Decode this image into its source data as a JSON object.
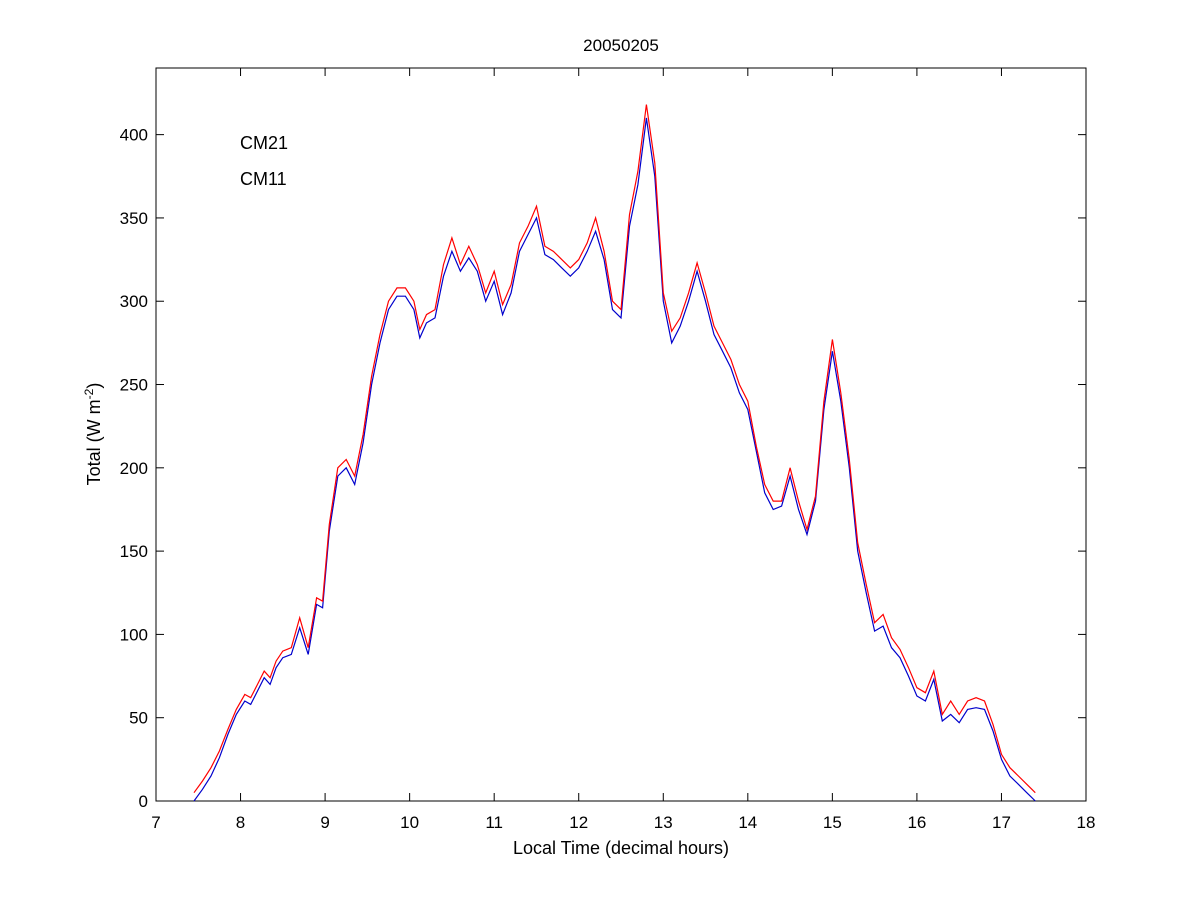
{
  "chart_data": {
    "type": "line",
    "title": "20050205",
    "xlabel": "Local Time (decimal hours)",
    "ylabel": {
      "text": "Total (W m",
      "superscript": "-2",
      "suffix": ")"
    },
    "xlim": [
      7,
      18
    ],
    "ylim": [
      0,
      440
    ],
    "xticks": [
      7,
      8,
      9,
      10,
      11,
      12,
      13,
      14,
      15,
      16,
      17,
      18
    ],
    "yticks": [
      0,
      50,
      100,
      150,
      200,
      250,
      300,
      350,
      400
    ],
    "grid": false,
    "legend_position": "top-left",
    "series": [
      {
        "name": "CM21",
        "color": "#0000cc",
        "x": [
          7.45,
          7.55,
          7.65,
          7.75,
          7.85,
          7.95,
          8.05,
          8.12,
          8.2,
          8.28,
          8.35,
          8.42,
          8.5,
          8.6,
          8.7,
          8.8,
          8.9,
          8.97,
          9.05,
          9.15,
          9.25,
          9.35,
          9.45,
          9.55,
          9.65,
          9.75,
          9.85,
          9.95,
          10.05,
          10.12,
          10.2,
          10.3,
          10.4,
          10.5,
          10.6,
          10.7,
          10.8,
          10.9,
          11.0,
          11.1,
          11.2,
          11.3,
          11.4,
          11.5,
          11.6,
          11.7,
          11.8,
          11.9,
          12.0,
          12.1,
          12.2,
          12.3,
          12.4,
          12.5,
          12.6,
          12.7,
          12.8,
          12.9,
          13.0,
          13.1,
          13.2,
          13.3,
          13.4,
          13.5,
          13.6,
          13.7,
          13.8,
          13.9,
          14.0,
          14.1,
          14.2,
          14.3,
          14.4,
          14.5,
          14.6,
          14.7,
          14.8,
          14.9,
          15.0,
          15.1,
          15.2,
          15.3,
          15.4,
          15.5,
          15.6,
          15.7,
          15.8,
          15.9,
          16.0,
          16.1,
          16.2,
          16.3,
          16.4,
          16.5,
          16.6,
          16.7,
          16.8,
          16.9,
          17.0,
          17.1,
          17.2,
          17.3,
          17.4
        ],
        "values": [
          0,
          7,
          15,
          26,
          40,
          52,
          60,
          58,
          66,
          74,
          70,
          80,
          86,
          88,
          104,
          88,
          118,
          116,
          162,
          195,
          200,
          190,
          215,
          250,
          275,
          295,
          303,
          303,
          295,
          278,
          287,
          290,
          315,
          330,
          318,
          326,
          318,
          300,
          312,
          292,
          305,
          330,
          340,
          350,
          328,
          325,
          320,
          315,
          320,
          330,
          342,
          325,
          295,
          290,
          345,
          370,
          410,
          375,
          300,
          275,
          285,
          300,
          318,
          300,
          280,
          270,
          260,
          245,
          235,
          210,
          185,
          175,
          177,
          195,
          175,
          160,
          180,
          235,
          270,
          240,
          200,
          150,
          125,
          102,
          105,
          92,
          86,
          75,
          63,
          60,
          73,
          48,
          52,
          47,
          55,
          56,
          55,
          42,
          25,
          15,
          10,
          5,
          0
        ]
      },
      {
        "name": "CM11",
        "color": "#ff0000",
        "x": [
          7.45,
          7.55,
          7.65,
          7.75,
          7.85,
          7.95,
          8.05,
          8.12,
          8.2,
          8.28,
          8.35,
          8.42,
          8.5,
          8.6,
          8.7,
          8.8,
          8.9,
          8.97,
          9.05,
          9.15,
          9.25,
          9.35,
          9.45,
          9.55,
          9.65,
          9.75,
          9.85,
          9.95,
          10.05,
          10.12,
          10.2,
          10.3,
          10.4,
          10.5,
          10.6,
          10.7,
          10.8,
          10.9,
          11.0,
          11.1,
          11.2,
          11.3,
          11.4,
          11.5,
          11.6,
          11.7,
          11.8,
          11.9,
          12.0,
          12.1,
          12.2,
          12.3,
          12.4,
          12.5,
          12.6,
          12.7,
          12.8,
          12.9,
          13.0,
          13.1,
          13.2,
          13.3,
          13.4,
          13.5,
          13.6,
          13.7,
          13.8,
          13.9,
          14.0,
          14.1,
          14.2,
          14.3,
          14.4,
          14.5,
          14.6,
          14.7,
          14.8,
          14.9,
          15.0,
          15.1,
          15.2,
          15.3,
          15.4,
          15.5,
          15.6,
          15.7,
          15.8,
          15.9,
          16.0,
          16.1,
          16.2,
          16.3,
          16.4,
          16.5,
          16.6,
          16.7,
          16.8,
          16.9,
          17.0,
          17.1,
          17.2,
          17.3,
          17.4
        ],
        "values": [
          5,
          12,
          20,
          30,
          43,
          55,
          64,
          62,
          70,
          78,
          74,
          84,
          90,
          92,
          110,
          92,
          122,
          120,
          166,
          200,
          205,
          195,
          220,
          255,
          280,
          300,
          308,
          308,
          300,
          283,
          292,
          295,
          322,
          338,
          322,
          333,
          322,
          305,
          318,
          298,
          310,
          335,
          345,
          357,
          333,
          330,
          325,
          320,
          325,
          335,
          350,
          330,
          300,
          295,
          352,
          378,
          418,
          383,
          305,
          282,
          290,
          305,
          323,
          305,
          285,
          275,
          265,
          250,
          240,
          213,
          190,
          180,
          180,
          200,
          180,
          163,
          183,
          240,
          277,
          245,
          205,
          155,
          130,
          107,
          112,
          98,
          91,
          80,
          68,
          65,
          78,
          52,
          60,
          52,
          60,
          62,
          60,
          46,
          28,
          20,
          15,
          10,
          5
        ]
      }
    ]
  }
}
